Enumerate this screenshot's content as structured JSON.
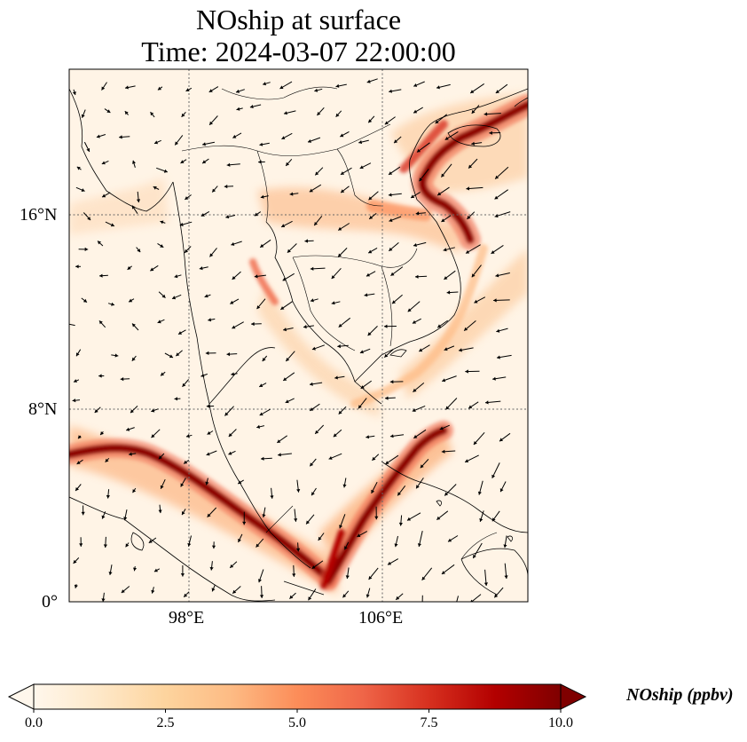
{
  "title_line1": "NOship at surface",
  "title_line2": "Time: 2024-03-07 22:00:00",
  "lat_ticks": [
    "16°N",
    "8°N",
    "0°"
  ],
  "lon_ticks": [
    "98°E",
    "106°E"
  ],
  "colorbar": {
    "label": "NOship (ppbv)",
    "ticks": [
      "0.0",
      "2.5",
      "5.0",
      "7.5",
      "10.0"
    ],
    "colormap": "OrRd",
    "colors": [
      "#fff7ec",
      "#fee8c8",
      "#fdd49e",
      "#fdbb84",
      "#fc8d59",
      "#ef6548",
      "#d7301f",
      "#b30000",
      "#7f0000"
    ]
  },
  "map": {
    "lon_range": [
      93,
      112
    ],
    "lat_range": [
      0,
      22
    ],
    "gridlines": "dotted",
    "vector_field": "wind arrows",
    "coastlines": true,
    "borders": true
  }
}
